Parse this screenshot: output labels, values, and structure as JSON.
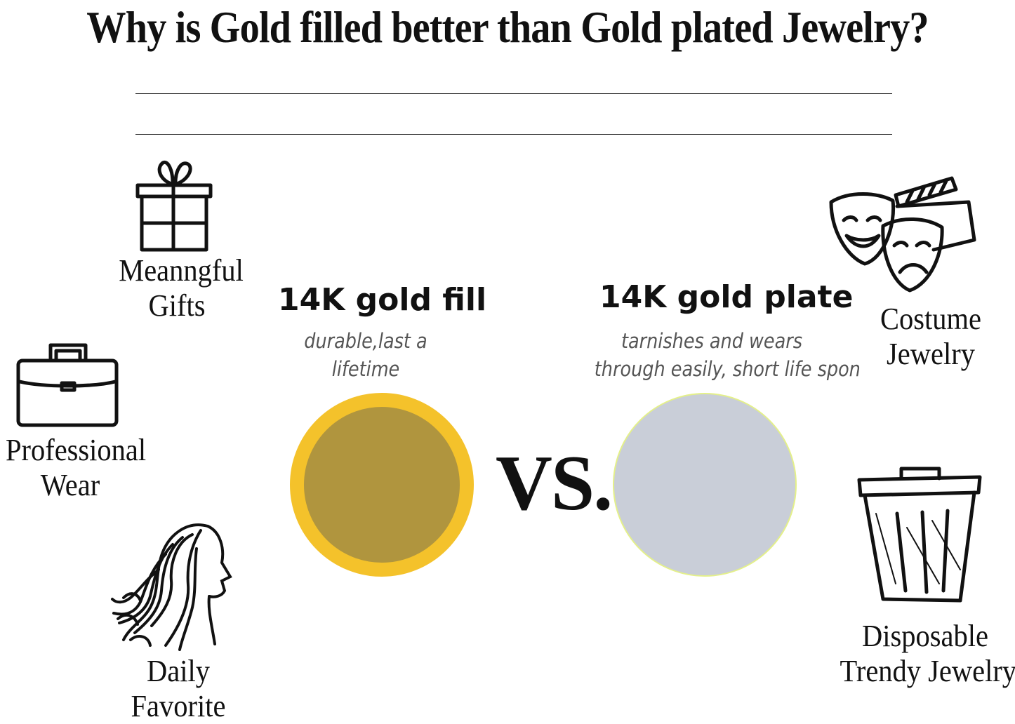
{
  "title": "Why is Gold filled better than Gold plated Jewelry?",
  "left_uses": [
    {
      "icon": "gift-icon",
      "lines": [
        "Meanngful",
        "Gifts"
      ]
    },
    {
      "icon": "briefcase-icon",
      "lines": [
        "Professional",
        "Wear"
      ]
    },
    {
      "icon": "woman-profile-icon",
      "lines": [
        "Daily",
        "Favorite"
      ]
    }
  ],
  "right_uses": [
    {
      "icon": "theater-masks-icon",
      "lines": [
        "Costume",
        "Jewelry"
      ]
    },
    {
      "icon": "trash-can-icon",
      "lines": [
        "Disposable",
        "Trendy Jewelry"
      ]
    }
  ],
  "gold_fill": {
    "heading": "14K gold fill",
    "description_lines": [
      "durable,last a",
      "lifetime"
    ],
    "ring_color": "#f4c22b",
    "core_color": "#b0953e"
  },
  "vs_label": "VS.",
  "gold_plate": {
    "heading": "14K gold plate",
    "description_lines": [
      "tarnishes and wears",
      "through easily, short life spon"
    ],
    "fill_color": "#c9ced8",
    "edge_color": "#e4f08a"
  }
}
